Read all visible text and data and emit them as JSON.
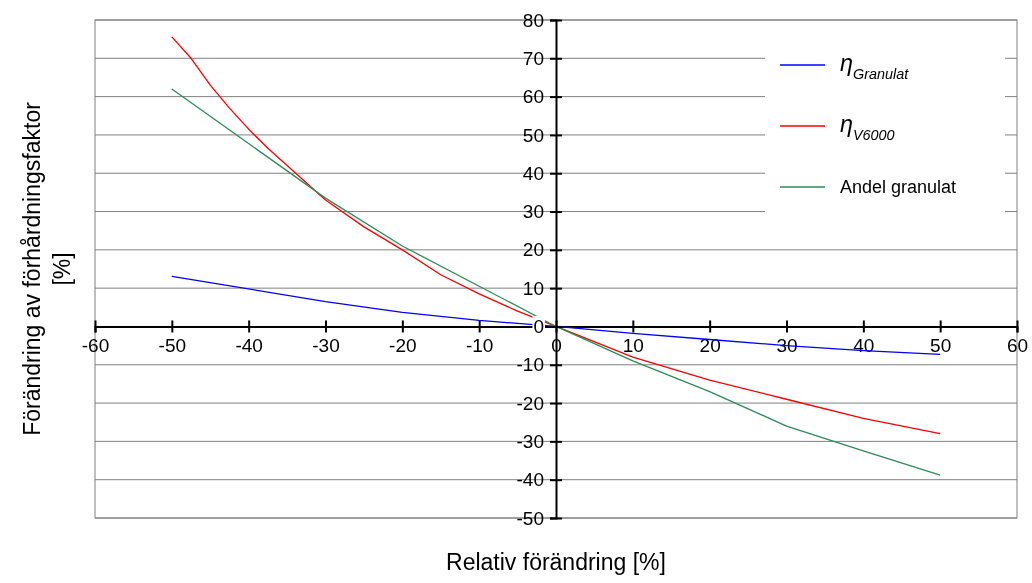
{
  "chart_data": {
    "type": "line",
    "xlabel": "Relativ förändring  [%]",
    "ylabel": "Förändring av förhårdningsfaktor [%]",
    "x": [
      -50,
      -30,
      -20,
      -10,
      0,
      10,
      20,
      30,
      40,
      50
    ],
    "xlim": [
      -60,
      60
    ],
    "xticks": [
      -60,
      -50,
      -40,
      -30,
      -20,
      -10,
      0,
      10,
      20,
      30,
      40,
      50,
      60
    ],
    "ylim": [
      -50,
      80
    ],
    "yticks": [
      -50,
      -40,
      -30,
      -20,
      -10,
      0,
      10,
      20,
      30,
      40,
      50,
      60,
      70,
      80
    ],
    "grid": "y",
    "legend": "top right",
    "marker": "none",
    "line_style": "solid",
    "series": [
      {
        "name": "η$_{Granulat}$",
        "color": "#0000ff",
        "values": [
          13.1,
          6.5,
          3.7,
          1.6,
          0,
          -1.8,
          -3.4,
          -5,
          -6.3,
          -7.3
        ]
      },
      {
        "name": "η$_{V6000}$",
        "color": "#ff0000",
        "x": [
          -50,
          -47.5,
          -45,
          -42.5,
          -40,
          -37.5,
          -35,
          -30,
          -25,
          -20,
          -15,
          -10,
          -5,
          0,
          10,
          20,
          30,
          40,
          50
        ],
        "values": [
          75.6,
          70,
          63,
          57,
          51.5,
          46.5,
          42,
          33,
          26,
          20,
          13.5,
          8.5,
          4,
          0,
          -8,
          -14,
          -19,
          -24,
          -28
        ]
      },
      {
        "name": "Andel granulat",
        "color": "#2e8b57",
        "values": [
          62,
          33.5,
          21,
          10.5,
          0,
          -9,
          -17,
          -26,
          -32.5,
          -38.8
        ]
      }
    ]
  }
}
